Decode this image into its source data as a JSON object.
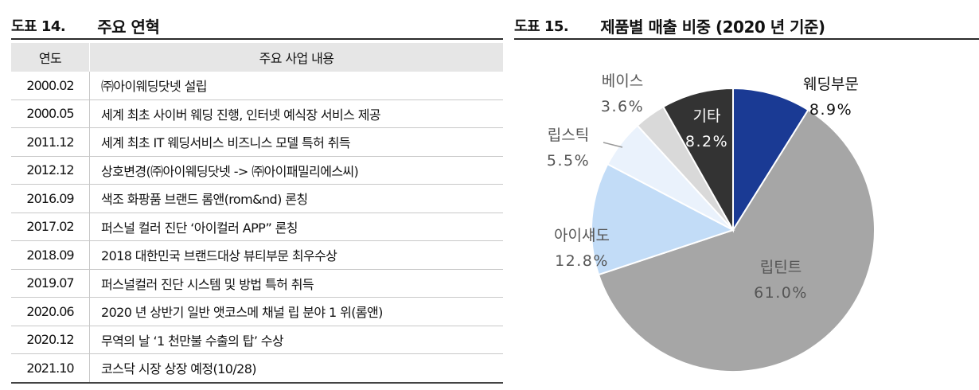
{
  "left_figure": {
    "number": "도표 14.",
    "title": "주요 연혁",
    "headers": {
      "year": "연도",
      "content": "주요 사업 내용"
    },
    "rows": [
      {
        "year": "2000.02",
        "text": "㈜아이웨딩닷넷 설립"
      },
      {
        "year": "2000.05",
        "text": "세계 최초 사이버 웨딩 진행, 인터넷 예식장 서비스 제공"
      },
      {
        "year": "2011.12",
        "text": "세계 최초 IT 웨딩서비스 비즈니스 모델 특허 취득"
      },
      {
        "year": "2012.12",
        "text": "상호변경(㈜아이웨딩닷넷 -> ㈜아이패밀리에스씨)"
      },
      {
        "year": "2016.09",
        "text": "색조 화팡품 브랜드 롬앤(rom&nd) 론칭"
      },
      {
        "year": "2017.02",
        "text": "퍼스널 컬러 진단 ‘아이컬러 APP” 론칭"
      },
      {
        "year": "2018.09",
        "text": "2018 대한민국 브랜드대상 뷰티부문 최우수상"
      },
      {
        "year": "2019.07",
        "text": "퍼스널컬러 진단 시스템 및 방법 특허 취득"
      },
      {
        "year": "2020.06",
        "text": "2020 년 상반기 일반 앳코스메 채널 립 분야 1 위(롬앤)"
      },
      {
        "year": "2020.12",
        "text": "무역의 날 ‘1 천만불 수출의 탑’ 수상"
      },
      {
        "year": "2021.10",
        "text": "코스닥 시장 상장 예정(10/28)"
      }
    ]
  },
  "right_figure": {
    "number": "도표 15.",
    "title": "제품별 매출 비중 (2020 년 기준)"
  },
  "chart_data": {
    "type": "pie",
    "title": "제품별 매출 비중 (2020 년 기준)",
    "unit": "%",
    "slices": [
      {
        "label": "웨딩부문",
        "value": 8.9,
        "display": "8.9%",
        "color": "#1a3a94"
      },
      {
        "label": "립틴트",
        "value": 61.0,
        "display": "61.0%",
        "color": "#a6a6a6"
      },
      {
        "label": "아이섀도",
        "value": 12.8,
        "display": "12.8%",
        "color": "#c2dcf7"
      },
      {
        "label": "립스틱",
        "value": 5.5,
        "display": "5.5%",
        "color": "#eaf2fc"
      },
      {
        "label": "베이스",
        "value": 3.6,
        "display": "3.6%",
        "color": "#d9d9d9"
      },
      {
        "label": "기타",
        "value": 8.2,
        "display": "8.2%",
        "color": "#333333"
      }
    ],
    "start": "12 o'clock",
    "direction": "clockwise",
    "legend": "none"
  }
}
